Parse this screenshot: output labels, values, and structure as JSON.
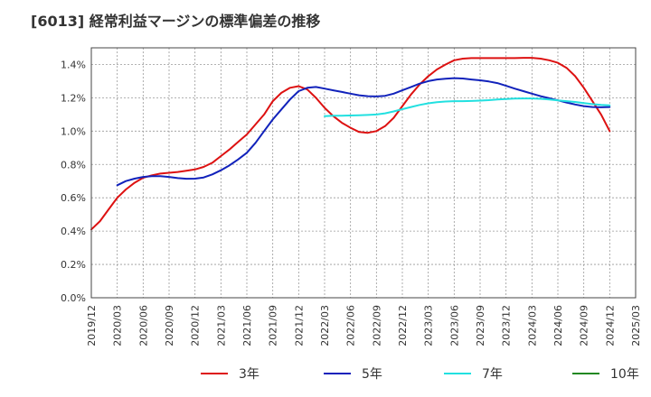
{
  "chart_data": {
    "type": "line",
    "title": "[6013]  経常利益マージンの標準偏差の推移",
    "xlabel": "",
    "ylabel": "",
    "x_ticks": [
      "2019/12",
      "2020/03",
      "2020/06",
      "2020/09",
      "2020/12",
      "2021/03",
      "2021/06",
      "2021/09",
      "2021/12",
      "2022/03",
      "2022/06",
      "2022/09",
      "2022/12",
      "2023/03",
      "2023/06",
      "2023/09",
      "2023/12",
      "2024/03",
      "2024/06",
      "2024/09",
      "2024/12",
      "2025/03"
    ],
    "y_ticks": [
      "0.0%",
      "0.2%",
      "0.4%",
      "0.6%",
      "0.8%",
      "1.0%",
      "1.2%",
      "1.4%"
    ],
    "ylim": [
      0,
      1.5
    ],
    "y_unit": "%",
    "grid": true,
    "legend_position": "bottom",
    "series": [
      {
        "name": "3年",
        "color": "#dd1111",
        "data": [
          [
            "2019/12",
            0.41
          ],
          [
            "2020/01",
            0.46
          ],
          [
            "2020/02",
            0.53
          ],
          [
            "2020/03",
            0.6
          ],
          [
            "2020/04",
            0.65
          ],
          [
            "2020/05",
            0.69
          ],
          [
            "2020/06",
            0.72
          ],
          [
            "2020/07",
            0.735
          ],
          [
            "2020/08",
            0.745
          ],
          [
            "2020/09",
            0.75
          ],
          [
            "2020/10",
            0.755
          ],
          [
            "2020/11",
            0.762
          ],
          [
            "2020/12",
            0.77
          ],
          [
            "2021/01",
            0.785
          ],
          [
            "2021/02",
            0.81
          ],
          [
            "2021/03",
            0.85
          ],
          [
            "2021/04",
            0.89
          ],
          [
            "2021/05",
            0.935
          ],
          [
            "2021/06",
            0.98
          ],
          [
            "2021/07",
            1.04
          ],
          [
            "2021/08",
            1.1
          ],
          [
            "2021/09",
            1.18
          ],
          [
            "2021/10",
            1.23
          ],
          [
            "2021/11",
            1.26
          ],
          [
            "2021/12",
            1.27
          ],
          [
            "2022/01",
            1.25
          ],
          [
            "2022/02",
            1.2
          ],
          [
            "2022/03",
            1.14
          ],
          [
            "2022/04",
            1.09
          ],
          [
            "2022/05",
            1.05
          ],
          [
            "2022/06",
            1.02
          ],
          [
            "2022/07",
            0.995
          ],
          [
            "2022/08",
            0.99
          ],
          [
            "2022/09",
            1.0
          ],
          [
            "2022/10",
            1.03
          ],
          [
            "2022/11",
            1.08
          ],
          [
            "2022/12",
            1.15
          ],
          [
            "2023/01",
            1.22
          ],
          [
            "2023/02",
            1.28
          ],
          [
            "2023/03",
            1.33
          ],
          [
            "2023/04",
            1.37
          ],
          [
            "2023/05",
            1.4
          ],
          [
            "2023/06",
            1.425
          ],
          [
            "2023/07",
            1.435
          ],
          [
            "2023/08",
            1.438
          ],
          [
            "2023/09",
            1.438
          ],
          [
            "2023/10",
            1.438
          ],
          [
            "2023/11",
            1.438
          ],
          [
            "2023/12",
            1.438
          ],
          [
            "2024/01",
            1.438
          ],
          [
            "2024/02",
            1.44
          ],
          [
            "2024/03",
            1.44
          ],
          [
            "2024/04",
            1.435
          ],
          [
            "2024/05",
            1.425
          ],
          [
            "2024/06",
            1.41
          ],
          [
            "2024/07",
            1.38
          ],
          [
            "2024/08",
            1.33
          ],
          [
            "2024/09",
            1.26
          ],
          [
            "2024/10",
            1.18
          ],
          [
            "2024/11",
            1.1
          ],
          [
            "2024/12",
            1.0
          ]
        ]
      },
      {
        "name": "5年",
        "color": "#1122bb",
        "data": [
          [
            "2020/03",
            0.675
          ],
          [
            "2020/04",
            0.7
          ],
          [
            "2020/05",
            0.715
          ],
          [
            "2020/06",
            0.725
          ],
          [
            "2020/07",
            0.73
          ],
          [
            "2020/08",
            0.73
          ],
          [
            "2020/09",
            0.725
          ],
          [
            "2020/10",
            0.718
          ],
          [
            "2020/11",
            0.714
          ],
          [
            "2020/12",
            0.715
          ],
          [
            "2021/01",
            0.722
          ],
          [
            "2021/02",
            0.74
          ],
          [
            "2021/03",
            0.765
          ],
          [
            "2021/04",
            0.795
          ],
          [
            "2021/05",
            0.83
          ],
          [
            "2021/06",
            0.87
          ],
          [
            "2021/07",
            0.93
          ],
          [
            "2021/08",
            1.0
          ],
          [
            "2021/09",
            1.07
          ],
          [
            "2021/10",
            1.13
          ],
          [
            "2021/11",
            1.19
          ],
          [
            "2021/12",
            1.24
          ],
          [
            "2022/01",
            1.26
          ],
          [
            "2022/02",
            1.265
          ],
          [
            "2022/03",
            1.255
          ],
          [
            "2022/04",
            1.245
          ],
          [
            "2022/05",
            1.235
          ],
          [
            "2022/06",
            1.225
          ],
          [
            "2022/07",
            1.215
          ],
          [
            "2022/08",
            1.21
          ],
          [
            "2022/09",
            1.208
          ],
          [
            "2022/10",
            1.212
          ],
          [
            "2022/11",
            1.225
          ],
          [
            "2022/12",
            1.245
          ],
          [
            "2023/01",
            1.265
          ],
          [
            "2023/02",
            1.285
          ],
          [
            "2023/03",
            1.3
          ],
          [
            "2023/04",
            1.31
          ],
          [
            "2023/05",
            1.315
          ],
          [
            "2023/06",
            1.318
          ],
          [
            "2023/07",
            1.316
          ],
          [
            "2023/08",
            1.31
          ],
          [
            "2023/09",
            1.305
          ],
          [
            "2023/10",
            1.298
          ],
          [
            "2023/11",
            1.288
          ],
          [
            "2023/12",
            1.272
          ],
          [
            "2024/01",
            1.255
          ],
          [
            "2024/02",
            1.24
          ],
          [
            "2024/03",
            1.225
          ],
          [
            "2024/04",
            1.21
          ],
          [
            "2024/05",
            1.198
          ],
          [
            "2024/06",
            1.185
          ],
          [
            "2024/07",
            1.172
          ],
          [
            "2024/08",
            1.16
          ],
          [
            "2024/09",
            1.15
          ],
          [
            "2024/10",
            1.145
          ],
          [
            "2024/11",
            1.143
          ],
          [
            "2024/12",
            1.145
          ]
        ]
      },
      {
        "name": "7年",
        "color": "#22e0e0",
        "data": [
          [
            "2022/03",
            1.09
          ],
          [
            "2022/04",
            1.092
          ],
          [
            "2022/05",
            1.093
          ],
          [
            "2022/06",
            1.094
          ],
          [
            "2022/07",
            1.095
          ],
          [
            "2022/08",
            1.097
          ],
          [
            "2022/09",
            1.1
          ],
          [
            "2022/10",
            1.107
          ],
          [
            "2022/11",
            1.118
          ],
          [
            "2022/12",
            1.132
          ],
          [
            "2023/01",
            1.145
          ],
          [
            "2023/02",
            1.157
          ],
          [
            "2023/03",
            1.167
          ],
          [
            "2023/04",
            1.174
          ],
          [
            "2023/05",
            1.178
          ],
          [
            "2023/06",
            1.18
          ],
          [
            "2023/07",
            1.18
          ],
          [
            "2023/08",
            1.181
          ],
          [
            "2023/09",
            1.183
          ],
          [
            "2023/10",
            1.186
          ],
          [
            "2023/11",
            1.19
          ],
          [
            "2023/12",
            1.193
          ],
          [
            "2024/01",
            1.195
          ],
          [
            "2024/02",
            1.196
          ],
          [
            "2024/03",
            1.196
          ],
          [
            "2024/04",
            1.194
          ],
          [
            "2024/05",
            1.19
          ],
          [
            "2024/06",
            1.185
          ],
          [
            "2024/07",
            1.18
          ],
          [
            "2024/08",
            1.175
          ],
          [
            "2024/09",
            1.168
          ],
          [
            "2024/10",
            1.162
          ],
          [
            "2024/11",
            1.158
          ],
          [
            "2024/12",
            1.155
          ]
        ]
      },
      {
        "name": "10年",
        "color": "#228822",
        "data": []
      }
    ]
  }
}
